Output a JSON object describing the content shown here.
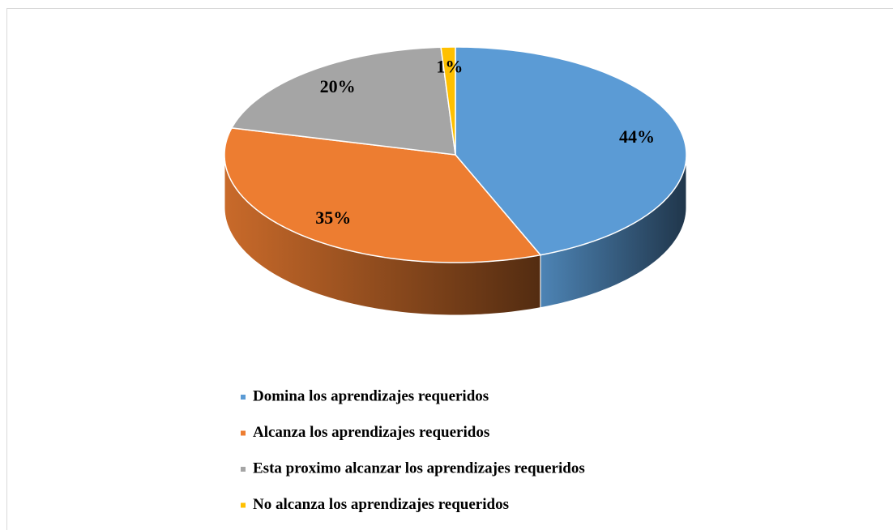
{
  "chart_data": {
    "type": "pie",
    "categories": [
      "Domina los aprendizajes requeridos",
      "Alcanza los aprendizajes requeridos",
      "Esta proximo alcanzar los aprendizajes requeridos",
      "No alcanza los aprendizajes requeridos"
    ],
    "values": [
      44,
      35,
      20,
      1
    ],
    "value_labels": [
      "44%",
      "35%",
      "20%",
      "1%"
    ],
    "colors": [
      "#5b9bd5",
      "#ed7d31",
      "#a5a5a5",
      "#ffc000"
    ],
    "legend": "bottom"
  }
}
